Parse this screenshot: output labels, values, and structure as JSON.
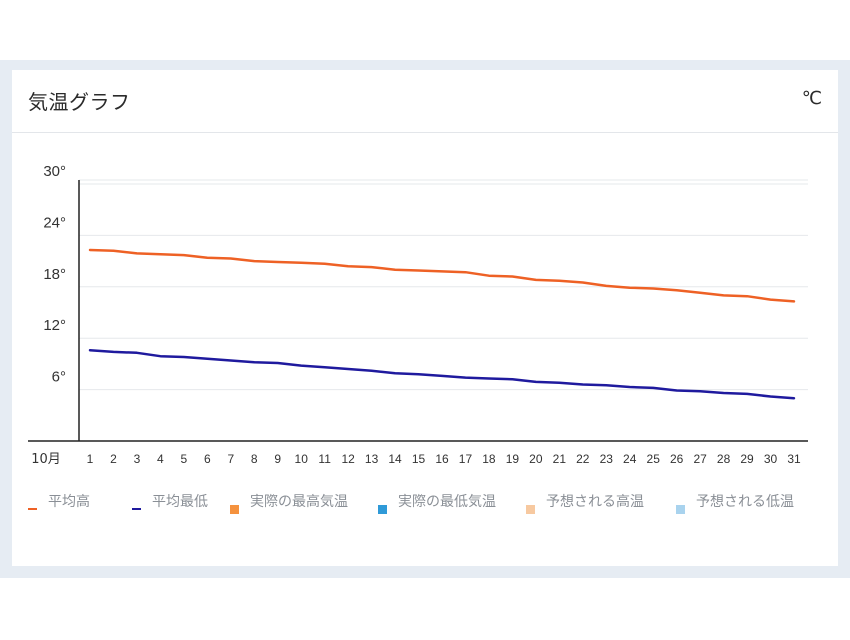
{
  "panel": {
    "title": "気温グラフ",
    "unit": "℃"
  },
  "colors": {
    "avg_high": "#ee6125",
    "avg_low": "#1f1a9e",
    "actual_high": "#f5923e",
    "actual_low": "#2f9ad8",
    "forecast_high": "#f7c9a0",
    "forecast_low": "#a9d3ee"
  },
  "legend": [
    {
      "label": "平均高",
      "symbol": "line",
      "color_key": "avg_high"
    },
    {
      "label": "平均最低",
      "symbol": "line",
      "color_key": "avg_low"
    },
    {
      "label": "実際の最高気温",
      "symbol": "square",
      "color_key": "actual_high"
    },
    {
      "label": "実際の最低気温",
      "symbol": "square",
      "color_key": "actual_low"
    },
    {
      "label": "予想される高温",
      "symbol": "square",
      "color_key": "forecast_high"
    },
    {
      "label": "予想される低温",
      "symbol": "square",
      "color_key": "forecast_low"
    }
  ],
  "chart_data": {
    "type": "line",
    "x_month_label": "10月",
    "x": [
      1,
      2,
      3,
      4,
      5,
      6,
      7,
      8,
      9,
      10,
      11,
      12,
      13,
      14,
      15,
      16,
      17,
      18,
      19,
      20,
      21,
      22,
      23,
      24,
      25,
      26,
      27,
      28,
      29,
      30,
      31
    ],
    "y_ticks": [
      "30°",
      "24°",
      "18°",
      "12°",
      "6°"
    ],
    "y_tick_values": [
      30,
      24,
      18,
      12,
      6
    ],
    "ylim": [
      0,
      30
    ],
    "grid": true,
    "legend_position": "bottom",
    "series": [
      {
        "name": "平均高",
        "color_key": "avg_high",
        "values": [
          22.3,
          22.2,
          21.9,
          21.8,
          21.7,
          21.4,
          21.3,
          21.0,
          20.9,
          20.8,
          20.7,
          20.4,
          20.3,
          20.0,
          19.9,
          19.8,
          19.7,
          19.3,
          19.2,
          18.8,
          18.7,
          18.5,
          18.1,
          17.9,
          17.8,
          17.6,
          17.3,
          17.0,
          16.9,
          16.5,
          16.3
        ]
      },
      {
        "name": "平均最低",
        "color_key": "avg_low",
        "values": [
          10.6,
          10.4,
          10.3,
          9.9,
          9.8,
          9.6,
          9.4,
          9.2,
          9.1,
          8.8,
          8.6,
          8.4,
          8.2,
          7.9,
          7.8,
          7.6,
          7.4,
          7.3,
          7.2,
          6.9,
          6.8,
          6.6,
          6.5,
          6.3,
          6.2,
          5.9,
          5.8,
          5.6,
          5.5,
          5.2,
          5.0
        ]
      }
    ]
  }
}
